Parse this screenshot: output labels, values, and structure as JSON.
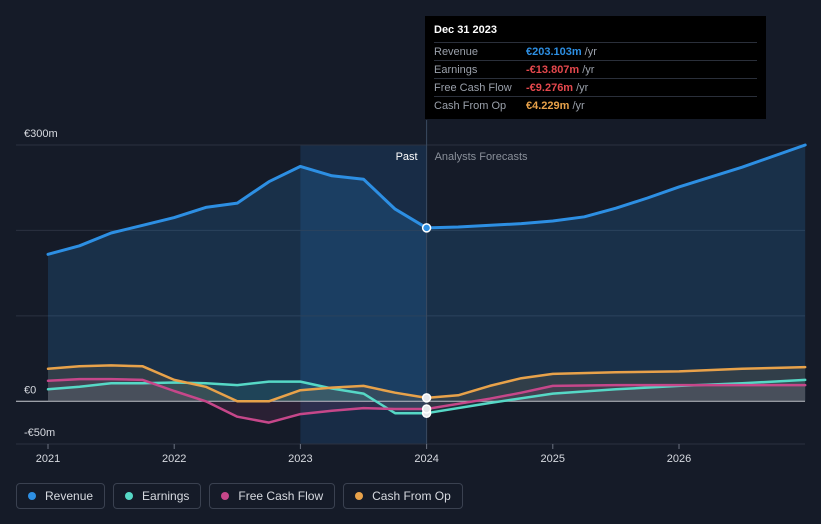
{
  "tooltip": {
    "date": "Dec 31 2023",
    "rows": [
      {
        "label": "Revenue",
        "value": "€203.103m",
        "unit": "/yr",
        "color": "#2d8fe3"
      },
      {
        "label": "Earnings",
        "value": "-€13.807m",
        "unit": "/yr",
        "color": "#e5484d"
      },
      {
        "label": "Free Cash Flow",
        "value": "-€9.276m",
        "unit": "/yr",
        "color": "#e5484d"
      },
      {
        "label": "Cash From Op",
        "value": "€4.229m",
        "unit": "/yr",
        "color": "#e8a24a"
      }
    ]
  },
  "legend": [
    {
      "label": "Revenue",
      "color": "#2d8fe3"
    },
    {
      "label": "Earnings",
      "color": "#56d8c6"
    },
    {
      "label": "Free Cash Flow",
      "color": "#c6478a"
    },
    {
      "label": "Cash From Op",
      "color": "#e8a24a"
    }
  ],
  "chart_data": {
    "type": "line",
    "currency": "€",
    "y_unit": "m",
    "ylim": [
      -50,
      300
    ],
    "y_ticks": [
      {
        "value": 300,
        "label": "€300m"
      },
      {
        "value": 0,
        "label": "€0"
      },
      {
        "value": -50,
        "label": "-€50m"
      }
    ],
    "xlim": [
      2021.0,
      2027.0
    ],
    "x_ticks": [
      "2021",
      "2022",
      "2023",
      "2024",
      "2025",
      "2026"
    ],
    "divider_x": 2024.0,
    "past_label": "Past",
    "forecast_label": "Analysts Forecasts",
    "highlight_range": [
      2023.0,
      2024.0
    ],
    "series": [
      {
        "name": "Revenue",
        "color": "#2d8fe3",
        "points": [
          [
            2021.0,
            172
          ],
          [
            2021.25,
            182
          ],
          [
            2021.5,
            197
          ],
          [
            2021.75,
            206
          ],
          [
            2022.0,
            215
          ],
          [
            2022.25,
            227
          ],
          [
            2022.5,
            232
          ],
          [
            2022.75,
            257
          ],
          [
            2023.0,
            275
          ],
          [
            2023.25,
            264
          ],
          [
            2023.5,
            260
          ],
          [
            2023.75,
            225
          ],
          [
            2024.0,
            203
          ],
          [
            2024.25,
            204
          ],
          [
            2024.75,
            208
          ],
          [
            2025.0,
            211
          ],
          [
            2025.25,
            216
          ],
          [
            2025.5,
            226
          ],
          [
            2025.75,
            238
          ],
          [
            2026.0,
            251
          ],
          [
            2026.5,
            274
          ],
          [
            2027.0,
            300
          ]
        ]
      },
      {
        "name": "Earnings",
        "color": "#56d8c6",
        "points": [
          [
            2021.0,
            14
          ],
          [
            2021.25,
            17
          ],
          [
            2021.5,
            21
          ],
          [
            2021.75,
            21
          ],
          [
            2022.0,
            22
          ],
          [
            2022.25,
            21
          ],
          [
            2022.5,
            19
          ],
          [
            2022.75,
            23
          ],
          [
            2023.0,
            23
          ],
          [
            2023.25,
            15
          ],
          [
            2023.5,
            9
          ],
          [
            2023.75,
            -14
          ],
          [
            2024.0,
            -14
          ],
          [
            2024.5,
            -2
          ],
          [
            2025.0,
            9
          ],
          [
            2025.5,
            14
          ],
          [
            2026.0,
            18
          ],
          [
            2026.5,
            21
          ],
          [
            2027.0,
            25
          ]
        ]
      },
      {
        "name": "Free Cash Flow",
        "color": "#c6478a",
        "points": [
          [
            2021.0,
            24
          ],
          [
            2021.25,
            26
          ],
          [
            2021.5,
            26
          ],
          [
            2021.75,
            25
          ],
          [
            2022.0,
            12
          ],
          [
            2022.25,
            0
          ],
          [
            2022.5,
            -18
          ],
          [
            2022.75,
            -25
          ],
          [
            2023.0,
            -15
          ],
          [
            2023.25,
            -11
          ],
          [
            2023.5,
            -8
          ],
          [
            2023.75,
            -9
          ],
          [
            2024.0,
            -9
          ],
          [
            2024.5,
            3
          ],
          [
            2024.75,
            10
          ],
          [
            2025.0,
            18
          ],
          [
            2025.5,
            19
          ],
          [
            2026.0,
            19
          ],
          [
            2026.5,
            19
          ],
          [
            2027.0,
            19
          ]
        ]
      },
      {
        "name": "Cash From Op",
        "color": "#e8a24a",
        "points": [
          [
            2021.0,
            38
          ],
          [
            2021.25,
            41
          ],
          [
            2021.5,
            42
          ],
          [
            2021.75,
            41
          ],
          [
            2022.0,
            25
          ],
          [
            2022.25,
            17
          ],
          [
            2022.5,
            0
          ],
          [
            2022.75,
            0
          ],
          [
            2023.0,
            13
          ],
          [
            2023.25,
            16
          ],
          [
            2023.5,
            18
          ],
          [
            2023.75,
            10
          ],
          [
            2024.0,
            4
          ],
          [
            2024.25,
            7
          ],
          [
            2024.5,
            18
          ],
          [
            2024.75,
            27
          ],
          [
            2025.0,
            32
          ],
          [
            2025.5,
            34
          ],
          [
            2026.0,
            35
          ],
          [
            2026.5,
            38
          ],
          [
            2027.0,
            40
          ]
        ]
      }
    ]
  }
}
